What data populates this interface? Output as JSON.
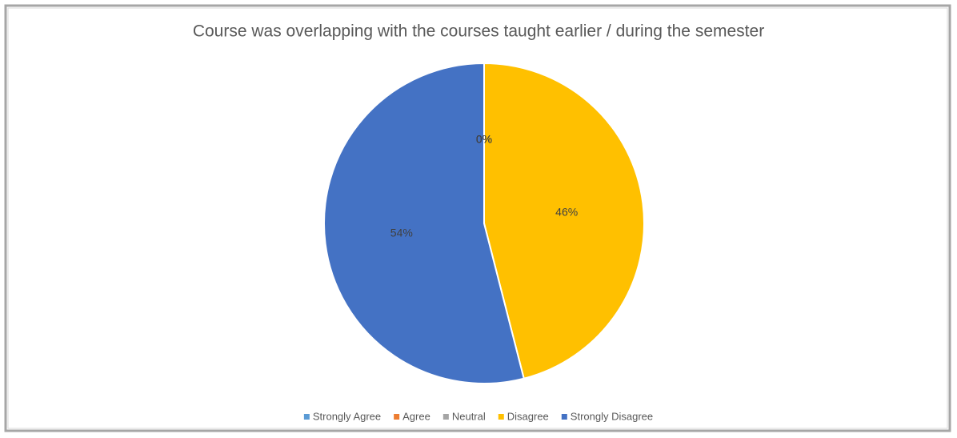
{
  "chart_data": {
    "type": "pie",
    "title": "Course was overlapping with the courses taught earlier / during the semester",
    "categories": [
      "Strongly Agree",
      "Agree",
      "Neutral",
      "Disagree",
      "Strongly Disagree"
    ],
    "values": [
      0,
      0,
      0,
      46,
      54
    ],
    "value_labels": [
      "0%",
      "0%",
      "0%",
      "46%",
      "54%"
    ],
    "colors": [
      "#5b9bd5",
      "#ed7d31",
      "#a5a5a5",
      "#ffc000",
      "#4472c4"
    ],
    "legend": "bottom"
  }
}
